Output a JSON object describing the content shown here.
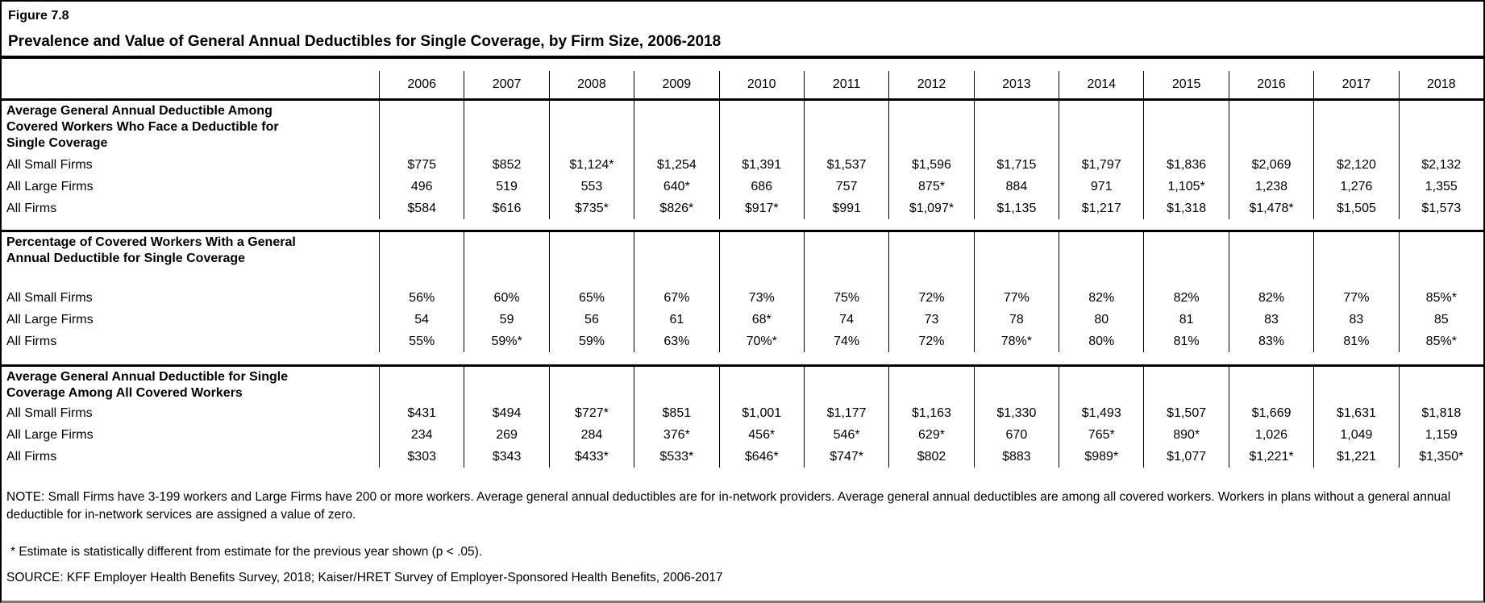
{
  "figure": {
    "label": "Figure 7.8",
    "title": "Prevalence and Value of General Annual Deductibles for Single Coverage, by Firm Size, 2006-2018"
  },
  "chart_data": {
    "type": "table",
    "title": "Prevalence and Value of General Annual Deductibles for Single Coverage, by Firm Size, 2006-2018",
    "years": [
      "2006",
      "2007",
      "2008",
      "2009",
      "2010",
      "2011",
      "2012",
      "2013",
      "2014",
      "2015",
      "2016",
      "2017",
      "2018"
    ],
    "sections": [
      {
        "header": "Average General Annual Deductible Among\nCovered Workers Who Face a Deductible for\nSingle Coverage",
        "rows": [
          {
            "label": "All Small Firms",
            "values": [
              "$775",
              "$852",
              "$1,124*",
              "$1,254",
              "$1,391",
              "$1,537",
              "$1,596",
              "$1,715",
              "$1,797",
              "$1,836",
              "$2,069",
              "$2,120",
              "$2,132"
            ]
          },
          {
            "label": "All Large Firms",
            "values": [
              "496",
              "519",
              "553",
              "640*",
              "686",
              "757",
              "875*",
              "884",
              "971",
              "1,105*",
              "1,238",
              "1,276",
              "1,355"
            ]
          },
          {
            "label": "All Firms",
            "values": [
              "$584",
              "$616",
              "$735*",
              "$826*",
              "$917*",
              "$991",
              "$1,097*",
              "$1,135",
              "$1,217",
              "$1,318",
              "$1,478*",
              "$1,505",
              "$1,573"
            ]
          }
        ]
      },
      {
        "header": "Percentage of Covered Workers With a General\nAnnual Deductible for Single Coverage",
        "rows": [
          {
            "label": "All Small Firms",
            "values": [
              "56%",
              "60%",
              "65%",
              "67%",
              "73%",
              "75%",
              "72%",
              "77%",
              "82%",
              "82%",
              "82%",
              "77%",
              "85%*"
            ]
          },
          {
            "label": "All Large Firms",
            "values": [
              "54",
              "59",
              "56",
              "61",
              "68*",
              "74",
              "73",
              "78",
              "80",
              "81",
              "83",
              "83",
              "85"
            ]
          },
          {
            "label": "All Firms",
            "values": [
              "55%",
              "59%*",
              "59%",
              "63%",
              "70%*",
              "74%",
              "72%",
              "78%*",
              "80%",
              "81%",
              "83%",
              "81%",
              "85%*"
            ]
          }
        ]
      },
      {
        "header": "Average General Annual Deductible for Single\nCoverage Among All Covered Workers",
        "rows": [
          {
            "label": "All Small Firms",
            "values": [
              "$431",
              "$494",
              "$727*",
              "$851",
              "$1,001",
              "$1,177",
              "$1,163",
              "$1,330",
              "$1,493",
              "$1,507",
              "$1,669",
              "$1,631",
              "$1,818"
            ]
          },
          {
            "label": "All Large Firms",
            "values": [
              "234",
              "269",
              "284",
              "376*",
              "456*",
              "546*",
              "629*",
              "670",
              "765*",
              "890*",
              "1,026",
              "1,049",
              "1,159"
            ]
          },
          {
            "label": "All Firms",
            "values": [
              "$303",
              "$343",
              "$433*",
              "$533*",
              "$646*",
              "$747*",
              "$802",
              "$883",
              "$989*",
              "$1,077",
              "$1,221*",
              "$1,221",
              "$1,350*"
            ]
          }
        ]
      }
    ]
  },
  "notes": {
    "note": "NOTE: Small Firms have 3-199 workers and Large Firms have 200 or more workers. Average general annual deductibles are for in-network providers. Average general annual deductibles are among all covered workers. Workers in plans without a general annual deductible for in-network services are assigned a value of zero.",
    "footnote": "* Estimate is statistically different from estimate for the previous year shown (p < .05).",
    "source": "SOURCE: KFF Employer Health Benefits Survey, 2018; Kaiser/HRET Survey of Employer-Sponsored Health Benefits, 2006-2017"
  },
  "colors": {
    "text": "#000000",
    "background": "#ffffff",
    "border": "#000000",
    "bottom_edge": "#7a7a7a"
  }
}
